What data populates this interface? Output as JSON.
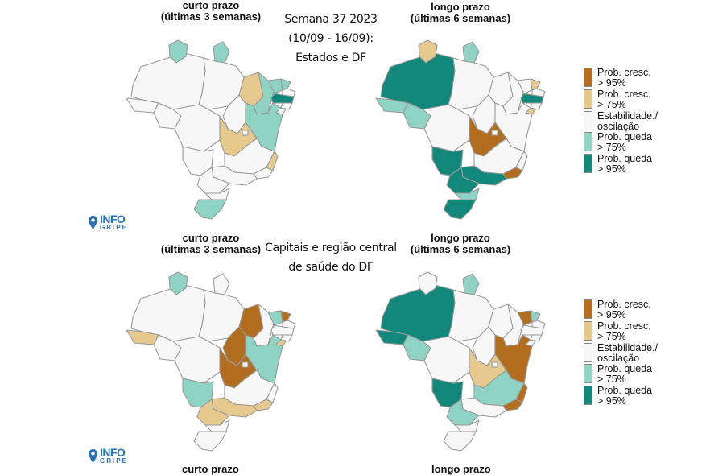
{
  "titles": {
    "short_term": "curto prazo\n(últimas 3 semanas)",
    "long_term": "longo prazo\n(últimas 6 semanas)",
    "top_center": "Semana 37 2023\n(10/09 - 16/09):\nEstados e DF",
    "bottom_center": "Capitais e região central\nde saúde do DF",
    "cut_short": "curto prazo",
    "cut_long": "longo prazo"
  },
  "legend": [
    {
      "label": "Prob. cresc.\n> 95%",
      "color": "#b26d1f"
    },
    {
      "label": "Prob. cresc.\n> 75%",
      "color": "#e6c98d"
    },
    {
      "label": "Estabilidade./\noscilação",
      "color": "#f7f7f7"
    },
    {
      "label": "Prob. queda\n> 75%",
      "color": "#8fd3c4"
    },
    {
      "label": "Prob. queda\n> 95%",
      "color": "#12887a"
    }
  ],
  "logo": {
    "main": "INFO",
    "sub": "GRIPE",
    "icon": "map-pin-icon"
  },
  "maps": [
    {
      "name": "states-short-term",
      "states": {
        "AC": "stable",
        "AM": "stable",
        "RR": "down75",
        "PA": "stable",
        "AP": "down75",
        "MA": "up75",
        "PI": "down75",
        "CE": "down75",
        "RN": "down75",
        "PB": "stable",
        "PE": "down95",
        "AL": "stable",
        "SE": "stable",
        "BA": "down75",
        "TO": "stable",
        "RO": "stable",
        "MT": "stable",
        "GO": "up75",
        "DF": "stable",
        "MS": "stable",
        "MG": "stable",
        "ES": "up75",
        "RJ": "stable",
        "SP": "stable",
        "PR": "stable",
        "SC": "stable",
        "RS": "down75"
      }
    },
    {
      "name": "states-long-term",
      "states": {
        "AC": "down75",
        "AM": "down95",
        "RR": "up75",
        "PA": "stable",
        "AP": "down75",
        "MA": "stable",
        "PI": "stable",
        "CE": "stable",
        "RN": "up75",
        "PB": "stable",
        "PE": "down95",
        "AL": "stable",
        "SE": "up75",
        "BA": "stable",
        "TO": "stable",
        "RO": "down75",
        "MT": "stable",
        "GO": "up95",
        "DF": "stable",
        "MS": "down95",
        "MG": "stable",
        "ES": "stable",
        "RJ": "up95",
        "SP": "down95",
        "PR": "down95",
        "SC": "down75",
        "RS": "down95"
      }
    },
    {
      "name": "capitals-short-term",
      "states": {
        "AC": "up75",
        "AM": "stable",
        "RR": "down75",
        "PA": "stable",
        "AP": "stable",
        "MA": "up95",
        "PI": "stable",
        "CE": "down75",
        "RN": "up95",
        "PB": "stable",
        "PE": "stable",
        "AL": "stable",
        "SE": "up75",
        "BA": "down75",
        "TO": "up95",
        "RO": "stable",
        "MT": "stable",
        "GO": "up95",
        "DF": "stable",
        "MS": "down75",
        "MG": "stable",
        "ES": "stable",
        "RJ": "up75",
        "SP": "up75",
        "PR": "up75",
        "SC": "stable",
        "RS": "stable"
      }
    },
    {
      "name": "capitals-long-term",
      "states": {
        "AC": "down95",
        "AM": "down95",
        "RR": "stable",
        "PA": "stable",
        "AP": "down75",
        "MA": "stable",
        "PI": "stable",
        "CE": "up95",
        "RN": "down75",
        "PB": "stable",
        "PE": "stable",
        "AL": "stable",
        "SE": "stable",
        "BA": "up95",
        "TO": "stable",
        "RO": "down75",
        "MT": "stable",
        "GO": "up75",
        "DF": "stable",
        "MS": "down95",
        "MG": "down75",
        "ES": "up95",
        "RJ": "up95",
        "SP": "stable",
        "PR": "down75",
        "SC": "stable",
        "RS": "stable"
      }
    }
  ]
}
